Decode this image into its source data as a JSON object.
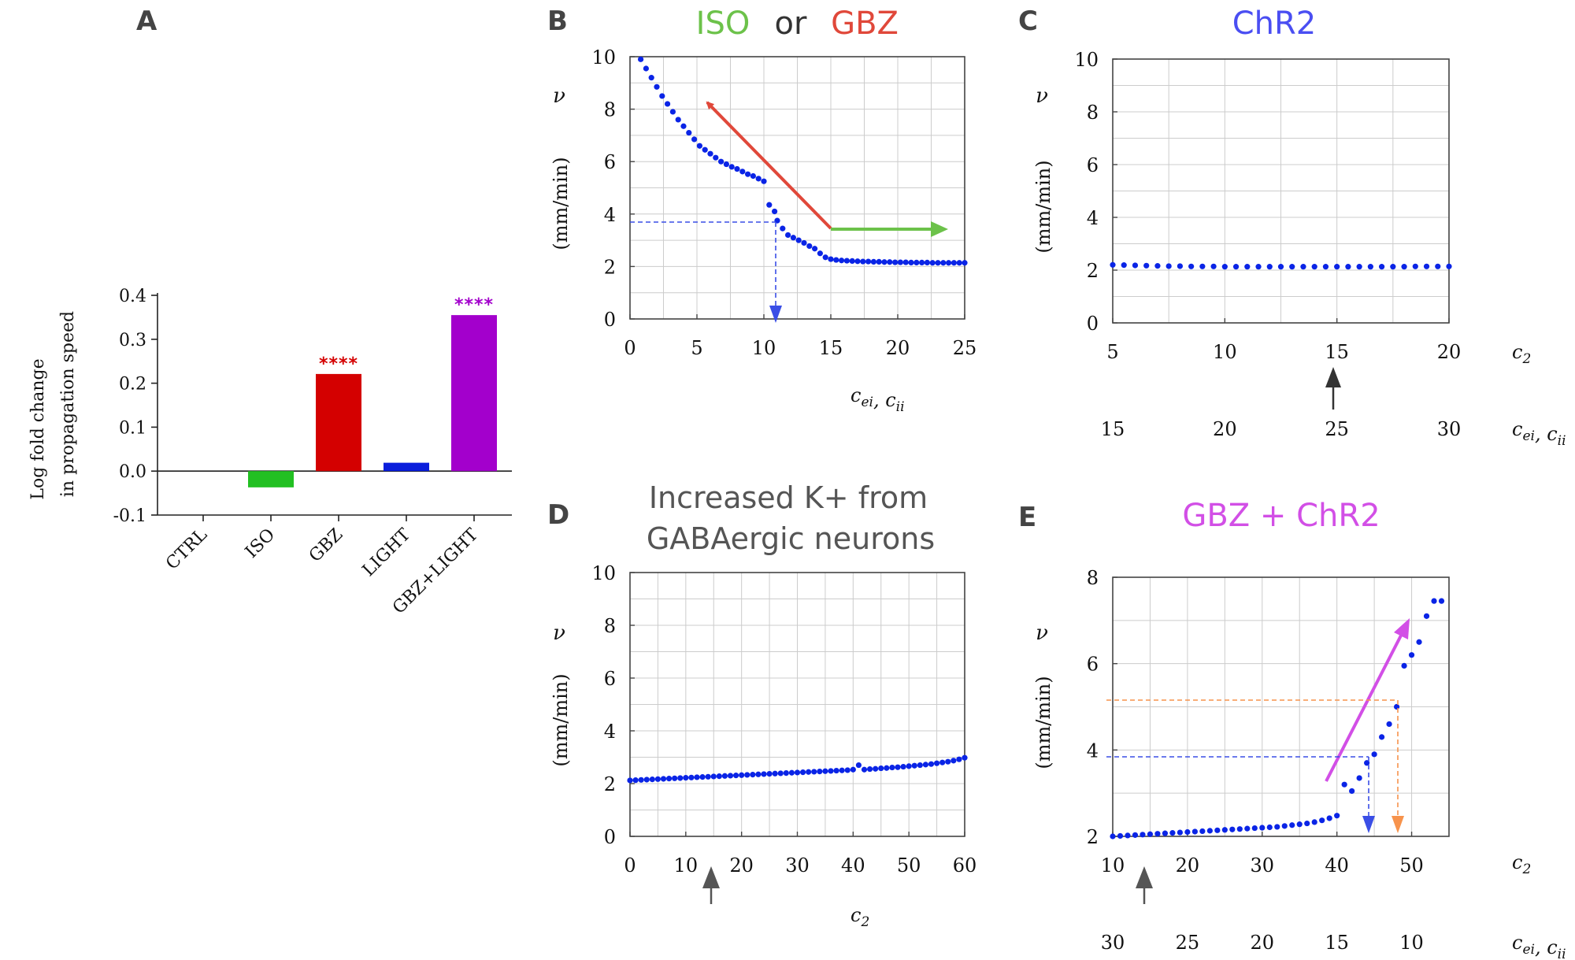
{
  "colors": {
    "dots": "#0a24e6",
    "green": "#6cc24a",
    "red": "#e0483a",
    "blue_title": "#4a4ef2",
    "magenta": "#d24fe6",
    "orange": "#f7934c",
    "bar_green": "#22c022",
    "bar_red": "#d40000",
    "bar_blue": "#0a1edc",
    "bar_purple": "#a300cc",
    "gray_title": "#555555"
  },
  "chart_data": [
    {
      "id": "A",
      "type": "bar",
      "panel_letter": "A",
      "ylabel_line1": "Log fold change",
      "ylabel_line2": "in propagation speed",
      "categories": [
        "CTRL",
        "ISO",
        "GBZ",
        "LIGHT",
        "GBZ+LIGHT"
      ],
      "values": [
        0.0,
        -0.037,
        0.221,
        0.019,
        0.355
      ],
      "bar_colors": [
        "#000000",
        "#22c022",
        "#d40000",
        "#0a1edc",
        "#a300cc"
      ],
      "significance": [
        "",
        "",
        "****",
        "",
        "****"
      ],
      "ylim": [
        -0.1,
        0.4
      ],
      "yticks": [
        "-0.1",
        "0.0",
        "0.1",
        "0.2",
        "0.3",
        "0.4"
      ],
      "grid": false
    },
    {
      "id": "B",
      "type": "scatter",
      "panel_letter": "B",
      "title_parts": [
        "ISO",
        "or",
        "GBZ"
      ],
      "ylabel_sym": "ν",
      "ylabel": "(mm/min)",
      "xlabel": "c_ei, c_ii",
      "xlim": [
        0,
        25
      ],
      "ylim": [
        0,
        10
      ],
      "xticks": [
        "0",
        "5",
        "10",
        "15",
        "20",
        "25"
      ],
      "yticks": [
        "0",
        "2",
        "4",
        "6",
        "8",
        "10"
      ],
      "grid": true,
      "x": [
        0.8,
        1.2,
        1.6,
        2.0,
        2.4,
        2.8,
        3.2,
        3.6,
        4.0,
        4.4,
        4.8,
        5.2,
        5.6,
        6.0,
        6.4,
        6.8,
        7.2,
        7.6,
        8.0,
        8.4,
        8.8,
        9.2,
        9.6,
        10.0,
        10.4,
        10.8,
        11.0,
        11.4,
        11.8,
        12.2,
        12.6,
        13.0,
        13.4,
        13.8,
        14.2,
        14.6,
        15.0,
        15.4,
        15.8,
        16.2,
        16.6,
        17.0,
        17.4,
        17.8,
        18.2,
        18.6,
        19.0,
        19.4,
        19.8,
        20.2,
        20.6,
        21.0,
        21.4,
        21.8,
        22.2,
        22.6,
        23.0,
        23.4,
        23.8,
        24.2,
        24.6,
        25.0
      ],
      "y": [
        9.9,
        9.55,
        9.2,
        8.85,
        8.5,
        8.2,
        7.9,
        7.6,
        7.35,
        7.1,
        6.85,
        6.6,
        6.45,
        6.3,
        6.15,
        6.0,
        5.9,
        5.8,
        5.72,
        5.62,
        5.52,
        5.45,
        5.35,
        5.25,
        4.35,
        4.1,
        3.75,
        3.45,
        3.2,
        3.1,
        3.0,
        2.9,
        2.78,
        2.68,
        2.5,
        2.35,
        2.28,
        2.25,
        2.23,
        2.22,
        2.21,
        2.2,
        2.19,
        2.19,
        2.18,
        2.18,
        2.17,
        2.17,
        2.16,
        2.16,
        2.16,
        2.15,
        2.15,
        2.15,
        2.15,
        2.14,
        2.14,
        2.14,
        2.14,
        2.14,
        2.14,
        2.14
      ]
    },
    {
      "id": "C",
      "type": "scatter",
      "panel_letter": "C",
      "title": "ChR2",
      "ylabel_sym": "ν",
      "ylabel": "(mm/min)",
      "xlabel": "c_2",
      "xlabel2": "c_ei, c_ii",
      "xlim": [
        5,
        20
      ],
      "ylim": [
        0,
        10
      ],
      "xticks": [
        "5",
        "10",
        "15",
        "20"
      ],
      "xticks2": [
        "15",
        "20",
        "25",
        "30"
      ],
      "yticks": [
        "0",
        "2",
        "4",
        "6",
        "8",
        "10"
      ],
      "grid": true,
      "x": [
        5.0,
        5.5,
        6.0,
        6.5,
        7.0,
        7.5,
        8.0,
        8.5,
        9.0,
        9.5,
        10.0,
        10.5,
        11.0,
        11.5,
        12.0,
        12.5,
        13.0,
        13.5,
        14.0,
        14.5,
        15.0,
        15.5,
        16.0,
        16.5,
        17.0,
        17.5,
        18.0,
        18.5,
        19.0,
        19.5,
        20.0
      ],
      "y": [
        2.2,
        2.19,
        2.18,
        2.17,
        2.16,
        2.15,
        2.15,
        2.14,
        2.14,
        2.14,
        2.13,
        2.13,
        2.13,
        2.13,
        2.13,
        2.13,
        2.13,
        2.13,
        2.13,
        2.13,
        2.13,
        2.13,
        2.13,
        2.13,
        2.13,
        2.13,
        2.13,
        2.14,
        2.14,
        2.14,
        2.14
      ]
    },
    {
      "id": "D",
      "type": "scatter",
      "panel_letter": "D",
      "title_line1": "Increased K+ from",
      "title_line2": "GABAergic neurons",
      "ylabel_sym": "ν",
      "ylabel": "(mm/min)",
      "xlabel": "c_2",
      "xlim": [
        0,
        60
      ],
      "ylim": [
        0,
        10
      ],
      "xticks": [
        "0",
        "10",
        "20",
        "30",
        "40",
        "50",
        "60"
      ],
      "yticks": [
        "0",
        "2",
        "4",
        "6",
        "8",
        "10"
      ],
      "grid": true,
      "x": [
        0,
        1,
        2,
        3,
        4,
        5,
        6,
        7,
        8,
        9,
        10,
        11,
        12,
        13,
        14,
        15,
        16,
        17,
        18,
        19,
        20,
        21,
        22,
        23,
        24,
        25,
        26,
        27,
        28,
        29,
        30,
        31,
        32,
        33,
        34,
        35,
        36,
        37,
        38,
        39,
        40,
        41,
        42,
        43,
        44,
        45,
        46,
        47,
        48,
        49,
        50,
        51,
        52,
        53,
        54,
        55,
        56,
        57,
        58,
        59,
        60
      ],
      "y": [
        2.12,
        2.13,
        2.14,
        2.15,
        2.16,
        2.17,
        2.18,
        2.19,
        2.2,
        2.21,
        2.22,
        2.23,
        2.24,
        2.25,
        2.26,
        2.27,
        2.28,
        2.29,
        2.3,
        2.31,
        2.32,
        2.33,
        2.34,
        2.35,
        2.36,
        2.37,
        2.38,
        2.39,
        2.4,
        2.41,
        2.42,
        2.43,
        2.44,
        2.45,
        2.46,
        2.47,
        2.48,
        2.49,
        2.5,
        2.51,
        2.53,
        2.7,
        2.53,
        2.55,
        2.56,
        2.58,
        2.59,
        2.61,
        2.62,
        2.64,
        2.66,
        2.68,
        2.7,
        2.72,
        2.74,
        2.77,
        2.8,
        2.83,
        2.87,
        2.92,
        2.98
      ]
    },
    {
      "id": "E",
      "type": "scatter",
      "panel_letter": "E",
      "title": "GBZ + ChR2",
      "ylabel_sym": "ν",
      "ylabel": "(mm/min)",
      "xlabel": "c_2",
      "xlabel2": "c_ei, c_ii",
      "xlim": [
        10,
        55
      ],
      "ylim": [
        2,
        8
      ],
      "xticks": [
        "10",
        "20",
        "30",
        "40",
        "50"
      ],
      "xticks2": [
        "30",
        "25",
        "20",
        "15",
        "10"
      ],
      "yticks": [
        "2",
        "4",
        "6",
        "8"
      ],
      "grid": true,
      "x": [
        10,
        11,
        12,
        13,
        14,
        15,
        16,
        17,
        18,
        19,
        20,
        21,
        22,
        23,
        24,
        25,
        26,
        27,
        28,
        29,
        30,
        31,
        32,
        33,
        34,
        35,
        36,
        37,
        38,
        39,
        40,
        41,
        42,
        43,
        44,
        45,
        46,
        47,
        48,
        49,
        50,
        51,
        52,
        53,
        54
      ],
      "y": [
        2.0,
        2.01,
        2.02,
        2.03,
        2.04,
        2.05,
        2.06,
        2.07,
        2.08,
        2.09,
        2.1,
        2.11,
        2.12,
        2.13,
        2.14,
        2.15,
        2.16,
        2.17,
        2.18,
        2.19,
        2.2,
        2.21,
        2.22,
        2.24,
        2.26,
        2.28,
        2.3,
        2.33,
        2.37,
        2.42,
        2.48,
        3.2,
        3.05,
        3.35,
        3.7,
        3.9,
        4.3,
        4.6,
        5.0,
        5.95,
        6.2,
        6.5,
        7.1,
        7.45,
        7.45
      ]
    }
  ]
}
